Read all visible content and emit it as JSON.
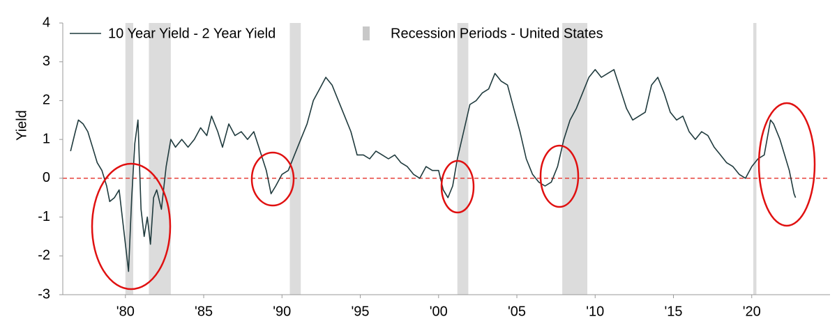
{
  "chart_data": {
    "type": "line",
    "ylabel": "Yield",
    "x": [
      1976.5,
      1976.8,
      1977.0,
      1977.3,
      1977.6,
      1977.9,
      1978.2,
      1978.5,
      1978.8,
      1979.0,
      1979.3,
      1979.6,
      1979.8,
      1980.0,
      1980.2,
      1980.4,
      1980.6,
      1980.8,
      1981.0,
      1981.2,
      1981.4,
      1981.6,
      1981.8,
      1982.0,
      1982.3,
      1982.6,
      1982.9,
      1983.2,
      1983.6,
      1984.0,
      1984.4,
      1984.8,
      1985.2,
      1985.5,
      1985.9,
      1986.2,
      1986.6,
      1987.0,
      1987.4,
      1987.8,
      1988.2,
      1988.6,
      1989.0,
      1989.3,
      1989.6,
      1990.0,
      1990.4,
      1990.8,
      1991.2,
      1991.6,
      1992.0,
      1992.4,
      1992.8,
      1993.2,
      1993.6,
      1994.0,
      1994.4,
      1994.8,
      1995.2,
      1995.6,
      1996.0,
      1996.4,
      1996.8,
      1997.2,
      1997.6,
      1998.0,
      1998.4,
      1998.8,
      1999.2,
      1999.6,
      2000.0,
      2000.3,
      2000.6,
      2000.9,
      2001.2,
      2001.6,
      2002.0,
      2002.4,
      2002.8,
      2003.2,
      2003.6,
      2004.0,
      2004.4,
      2004.8,
      2005.2,
      2005.6,
      2006.0,
      2006.4,
      2006.8,
      2007.2,
      2007.6,
      2008.0,
      2008.4,
      2008.8,
      2009.2,
      2009.6,
      2010.0,
      2010.4,
      2010.8,
      2011.2,
      2011.6,
      2012.0,
      2012.4,
      2012.8,
      2013.2,
      2013.6,
      2014.0,
      2014.4,
      2014.8,
      2015.2,
      2015.6,
      2016.0,
      2016.4,
      2016.8,
      2017.2,
      2017.6,
      2018.0,
      2018.4,
      2018.8,
      2019.2,
      2019.6,
      2020.0,
      2020.4,
      2020.8,
      2021.2,
      2021.4,
      2021.8,
      2022.1,
      2022.4,
      2022.7,
      2022.8
    ],
    "series": [
      {
        "name": "10 Year Yield - 2 Year Yield",
        "color": "#1f3a3d",
        "values": [
          0.7,
          1.2,
          1.5,
          1.4,
          1.2,
          0.8,
          0.4,
          0.2,
          -0.2,
          -0.6,
          -0.5,
          -0.3,
          -1.0,
          -1.7,
          -2.4,
          -0.5,
          0.9,
          1.5,
          -0.8,
          -1.5,
          -1.0,
          -1.7,
          -0.5,
          -0.3,
          -0.8,
          0.3,
          1.0,
          0.8,
          1.0,
          0.8,
          1.0,
          1.3,
          1.1,
          1.6,
          1.2,
          0.8,
          1.4,
          1.1,
          1.2,
          1.0,
          1.2,
          0.7,
          0.2,
          -0.4,
          -0.2,
          0.1,
          0.2,
          0.6,
          1.0,
          1.4,
          2.0,
          2.3,
          2.6,
          2.4,
          2.0,
          1.6,
          1.2,
          0.6,
          0.6,
          0.5,
          0.7,
          0.6,
          0.5,
          0.6,
          0.4,
          0.3,
          0.1,
          0.0,
          0.3,
          0.2,
          0.2,
          -0.3,
          -0.5,
          -0.2,
          0.5,
          1.2,
          1.9,
          2.0,
          2.2,
          2.3,
          2.7,
          2.5,
          2.4,
          1.8,
          1.2,
          0.5,
          0.1,
          -0.1,
          -0.2,
          -0.1,
          0.3,
          1.0,
          1.5,
          1.8,
          2.2,
          2.6,
          2.8,
          2.6,
          2.7,
          2.8,
          2.3,
          1.8,
          1.5,
          1.6,
          1.7,
          2.4,
          2.6,
          2.2,
          1.7,
          1.5,
          1.6,
          1.2,
          1.0,
          1.2,
          1.1,
          0.8,
          0.6,
          0.4,
          0.3,
          0.1,
          0.0,
          0.3,
          0.5,
          0.6,
          1.5,
          1.4,
          1.0,
          0.6,
          0.2,
          -0.4,
          -0.5
        ]
      }
    ],
    "recessions": {
      "name": "Recession Periods - United States",
      "color": "#dcdcdc",
      "periods": [
        [
          1980.0,
          1980.5
        ],
        [
          1981.5,
          1982.9
        ],
        [
          1990.5,
          1991.2
        ],
        [
          2001.2,
          2001.9
        ],
        [
          2007.9,
          2009.5
        ],
        [
          2020.1,
          2020.3
        ]
      ]
    },
    "reference_line": {
      "value": 0,
      "color": "#e8403a"
    },
    "xlim": [
      1976,
      2025
    ],
    "xticks": [
      {
        "value": 1980,
        "label": "'80"
      },
      {
        "value": 1985,
        "label": "'85"
      },
      {
        "value": 1990,
        "label": "'90"
      },
      {
        "value": 1995,
        "label": "'95"
      },
      {
        "value": 2000,
        "label": "'00"
      },
      {
        "value": 2005,
        "label": "'05"
      },
      {
        "value": 2010,
        "label": "'10"
      },
      {
        "value": 2015,
        "label": "'15"
      },
      {
        "value": 2020,
        "label": "'20"
      }
    ],
    "ylim": [
      -3,
      4
    ],
    "yticks": [
      -3,
      -2,
      -1,
      0,
      1,
      2,
      3,
      4
    ]
  }
}
